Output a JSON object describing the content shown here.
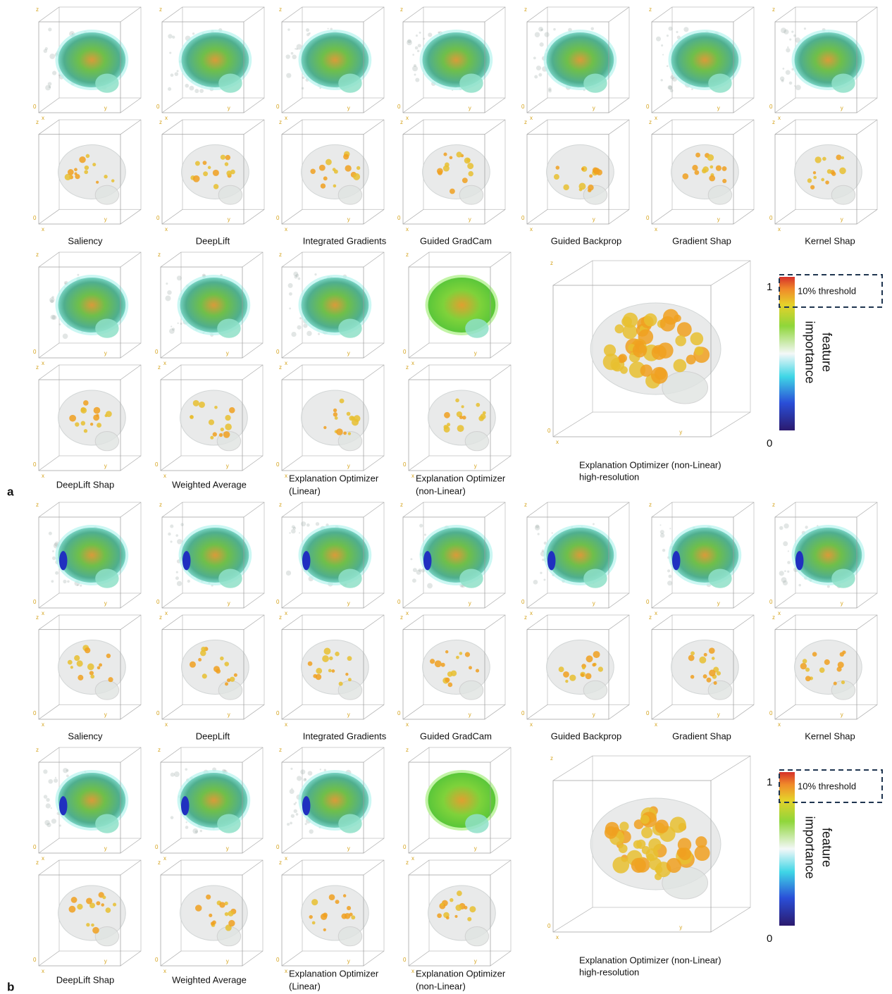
{
  "axis_labels": {
    "z": "z",
    "x": "x",
    "y": "y",
    "origin": "0"
  },
  "panels": [
    {
      "label": "a",
      "row1_methods": [
        "Saliency",
        "DeepLift",
        "Integrated Gradients",
        "Guided GradCam",
        "Guided Backprop",
        "Gradient Shap",
        "Kernel Shap"
      ],
      "row2_methods": [
        [
          "DeepLift Shap"
        ],
        [
          "Weighted Average"
        ],
        [
          "Explanation Optimizer",
          "(Linear)"
        ],
        [
          "Explanation Optimizer",
          "(non-Linear)"
        ]
      ],
      "highres_label": [
        "Explanation Optimizer (non-Linear)",
        "high-resolution"
      ],
      "colorbar": {
        "max": 1,
        "min": 0,
        "threshold": "10% threshold",
        "title": [
          "feature",
          "importance"
        ]
      }
    },
    {
      "label": "b",
      "row1_methods": [
        "Saliency",
        "DeepLift",
        "Integrated Gradients",
        "Guided GradCam",
        "Guided Backprop",
        "Gradient Shap",
        "Kernel Shap"
      ],
      "row2_methods": [
        [
          "DeepLift Shap"
        ],
        [
          "Weighted Average"
        ],
        [
          "Explanation Optimizer",
          "(Linear)"
        ],
        [
          "Explanation Optimizer",
          "(non-Linear)"
        ]
      ],
      "highres_label": [
        "Explanation Optimizer (non-Linear)",
        "high-resolution"
      ],
      "colorbar": {
        "max": 1,
        "min": 0,
        "threshold": "10% threshold",
        "title": [
          "feature",
          "importance"
        ]
      }
    }
  ]
}
